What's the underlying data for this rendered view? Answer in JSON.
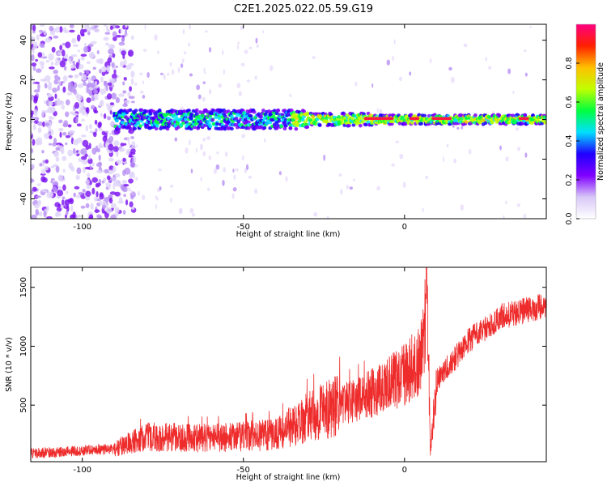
{
  "title": "C2E1.2025.022.05.59.G19",
  "chart_data": [
    {
      "type": "heatmap",
      "xlabel": "Height of straight line (km)",
      "ylabel": "Frequency (Hz)",
      "xlim": [
        -116,
        44
      ],
      "ylim": [
        -50,
        48
      ],
      "xticks": [
        -100,
        -50,
        0
      ],
      "yticks": [
        -40,
        -20,
        0,
        20,
        40
      ],
      "xtick_labels": [
        "-100",
        "-50",
        "0"
      ],
      "ytick_labels": [
        "-40",
        "-20",
        "0",
        "20",
        "40"
      ],
      "colorbar": {
        "label": "Normalized spectral amplitude",
        "range": [
          0,
          1
        ],
        "ticks": [
          0.0,
          0.2,
          0.4,
          0.6,
          0.8
        ],
        "tick_labels": [
          "0.0",
          "0.2",
          "0.4",
          "0.6",
          "0.8"
        ],
        "colors": [
          "#ffffff",
          "#d8c8f8",
          "#8000ff",
          "#2000ff",
          "#00e0ff",
          "#00ff40",
          "#c0ff00",
          "#ffc000",
          "#ff2000",
          "#ff0080"
        ]
      },
      "grid": false,
      "description_of_signal": {
        "noise_region_x": [
          -116,
          -88
        ],
        "carrier_start_x": -90,
        "carrier_end_x": 44,
        "carrier_frequency_hz": 0,
        "strong_segments_x": [
          [
            -12,
            -4
          ],
          [
            2,
            4
          ],
          [
            9,
            14
          ],
          [
            36,
            38
          ]
        ]
      }
    },
    {
      "type": "line",
      "xlabel": "Height of straight line (km)",
      "ylabel": "SNR (10 * v/v)",
      "xlim": [
        -116,
        44
      ],
      "ylim": [
        20,
        1670
      ],
      "xticks": [
        -100,
        -50,
        0
      ],
      "yticks": [
        500,
        1000,
        1500
      ],
      "xtick_labels": [
        "-100",
        "-50",
        "0"
      ],
      "ytick_labels": [
        "500",
        "1000",
        "1500"
      ],
      "series": [
        {
          "color": "#ee2c2c",
          "trend_x": [
            -116,
            -90,
            -80,
            -60,
            -40,
            -30,
            -20,
            -10,
            0,
            4,
            6,
            7,
            8,
            10,
            20,
            30,
            44
          ],
          "trend_y": [
            90,
            130,
            230,
            220,
            250,
            400,
            500,
            600,
            760,
            880,
            1000,
            1650,
            100,
            700,
            1050,
            1250,
            1350
          ]
        }
      ],
      "grid": false
    }
  ]
}
